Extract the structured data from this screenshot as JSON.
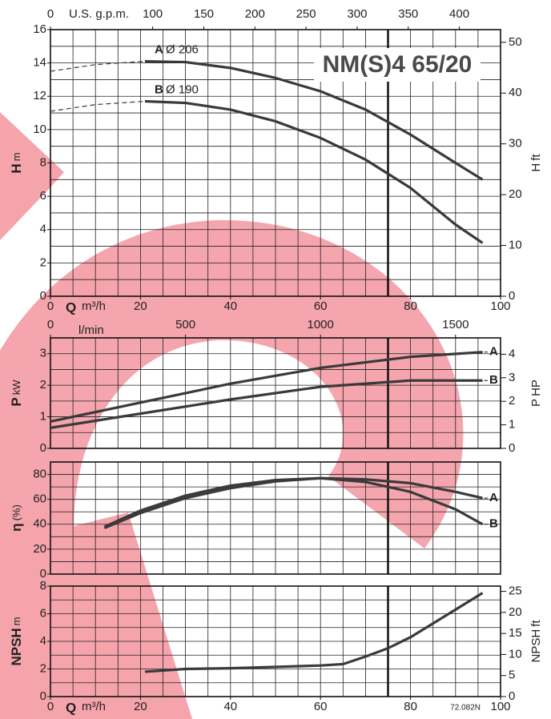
{
  "title": "NM(S)4 65/20",
  "note": "72.082N",
  "chart_data": [
    {
      "type": "line",
      "ylabel": "H",
      "yunit": "m",
      "y2label": "H",
      "y2unit": "ft",
      "xlabel": "Q",
      "xunit": "m³/h",
      "x2label": "U.S. g.p.m.",
      "xlim": [
        0,
        100
      ],
      "xticks": [
        0,
        20,
        40,
        60,
        80,
        100
      ],
      "x2lim": [
        0,
        440.29
      ],
      "x2ticks": [
        0,
        100,
        150,
        200,
        250,
        300,
        350,
        400
      ],
      "ylim": [
        0,
        16
      ],
      "yticks": [
        0,
        2,
        4,
        6,
        8,
        10,
        12,
        14,
        16
      ],
      "y2lim": [
        0,
        52.49
      ],
      "y2ticks": [
        0,
        10,
        20,
        30,
        40,
        50
      ],
      "grid": true,
      "xgrid_step": 5,
      "ygrid_step": 1,
      "xgrid_bold": 75,
      "series": [
        {
          "name": "A",
          "label": "Ø 206",
          "color": "#3a3a3a",
          "x": [
            21,
            30,
            40,
            50,
            60,
            70,
            80,
            90,
            96
          ],
          "values": [
            14.1,
            14.05,
            13.7,
            13.1,
            12.3,
            11.2,
            9.7,
            8.0,
            7.0
          ],
          "dashed_x": [
            0,
            10,
            21
          ],
          "dashed_values": [
            13.5,
            13.9,
            14.1
          ]
        },
        {
          "name": "B",
          "label": "Ø 190",
          "color": "#3a3a3a",
          "x": [
            21,
            30,
            40,
            50,
            60,
            70,
            80,
            90,
            96
          ],
          "values": [
            11.7,
            11.6,
            11.2,
            10.5,
            9.5,
            8.2,
            6.5,
            4.3,
            3.2
          ],
          "dashed_x": [
            0,
            10,
            21
          ],
          "dashed_values": [
            11.1,
            11.5,
            11.7
          ]
        }
      ]
    },
    {
      "type": "line",
      "ylabel": "P",
      "yunit": "kW",
      "y2label": "P",
      "y2unit": "HP",
      "x2label": "l/min",
      "xlim": [
        0,
        100
      ],
      "x2lim": [
        0,
        1666.67
      ],
      "x2ticks": [
        0,
        500,
        1000,
        1500
      ],
      "ylim": [
        0,
        3.5
      ],
      "yticks": [
        0,
        1,
        2,
        3
      ],
      "y2lim": [
        0,
        4.694
      ],
      "y2ticks": [
        0,
        1,
        2,
        3,
        4
      ],
      "grid": true,
      "xgrid_step": 5,
      "ygrid_step": 0.5,
      "xgrid_bold": 75,
      "series": [
        {
          "name": "A",
          "color": "#3a3a3a",
          "x": [
            0,
            20,
            40,
            60,
            80,
            96
          ],
          "values": [
            0.85,
            1.45,
            2.05,
            2.55,
            2.9,
            3.05
          ]
        },
        {
          "name": "B",
          "color": "#3a3a3a",
          "x": [
            0,
            20,
            40,
            60,
            80,
            96
          ],
          "values": [
            0.65,
            1.1,
            1.55,
            1.95,
            2.15,
            2.15
          ]
        }
      ]
    },
    {
      "type": "line",
      "ylabel": "η",
      "yunit": "(%)",
      "xlim": [
        0,
        100
      ],
      "ylim": [
        0,
        90
      ],
      "yticks": [
        0,
        20,
        40,
        60,
        80
      ],
      "grid": true,
      "xgrid_step": 5,
      "ygrid_step": 10,
      "xgrid_bold": 75,
      "series": [
        {
          "name": "A",
          "color": "#3a3a3a",
          "x": [
            12,
            20,
            30,
            40,
            50,
            60,
            70,
            80,
            90,
            96
          ],
          "values": [
            38,
            51,
            63,
            71,
            75.5,
            77,
            76,
            73,
            66,
            61
          ]
        },
        {
          "name": "B",
          "color": "#3a3a3a",
          "x": [
            12,
            20,
            30,
            40,
            50,
            60,
            70,
            80,
            90,
            96
          ],
          "values": [
            37,
            49,
            61,
            69,
            74.5,
            77,
            74,
            66,
            52,
            40
          ]
        }
      ]
    },
    {
      "type": "line",
      "ylabel": "NPSH",
      "yunit": "m",
      "y2label": "NPSH",
      "y2unit": "ft",
      "xlabel": "Q",
      "xunit": "m³/h",
      "xlim": [
        0,
        100
      ],
      "xticks": [
        0,
        20,
        40,
        60,
        80,
        100
      ],
      "ylim": [
        0,
        8
      ],
      "yticks": [
        0,
        2,
        4,
        6,
        8
      ],
      "y2lim": [
        0,
        26.25
      ],
      "y2ticks": [
        0,
        5,
        10,
        15,
        20,
        25
      ],
      "grid": true,
      "xgrid_step": 5,
      "ygrid_step": 1,
      "xgrid_bold": 75,
      "series": [
        {
          "color": "#3a3a3a",
          "x": [
            21,
            30,
            40,
            50,
            60,
            65,
            70,
            75,
            80,
            85,
            90,
            96
          ],
          "values": [
            1.8,
            2.0,
            2.05,
            2.15,
            2.25,
            2.35,
            2.9,
            3.5,
            4.3,
            5.3,
            6.3,
            7.5
          ]
        }
      ]
    }
  ]
}
